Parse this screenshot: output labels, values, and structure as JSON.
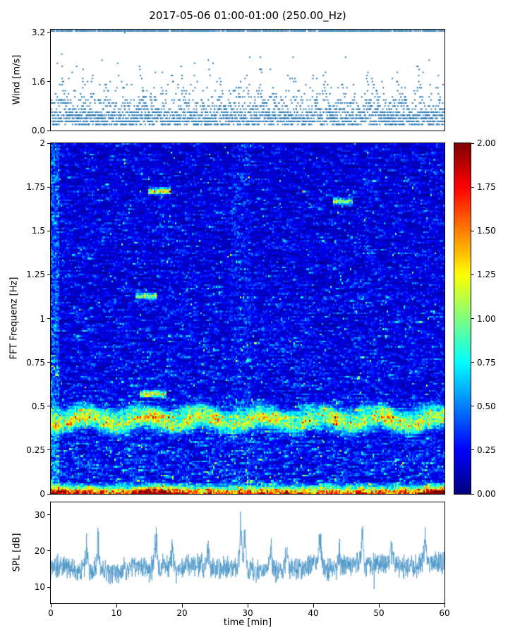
{
  "figure": {
    "title": "2017-05-06 01:00-01:00 (250.00_Hz)",
    "xlabel": "time [min]",
    "background": "#ffffff"
  },
  "chart_data": [
    {
      "id": "wind",
      "type": "scatter",
      "ylabel": "Wind [m/s]",
      "ylim": [
        0.0,
        3.3
      ],
      "yticks": [
        "3.2",
        "1.6",
        "0.0"
      ],
      "ytick_values": [
        3.2,
        1.6,
        0.0
      ],
      "xlim": [
        0,
        60
      ],
      "marker_color": "#2878b5",
      "n_time_steps": 900,
      "quantization_step": 0.1,
      "top_line_value": 3.26,
      "description": "dense quantized wind-speed scatter, mostly 0.2-1.2 m/s, episodic gust columns up to 3.2 m/s, near-continuous dotted row just below 3.3"
    },
    {
      "id": "spectrogram",
      "type": "heatmap",
      "ylabel": "FFT Frequenz [Hz]",
      "ylim": [
        0,
        2
      ],
      "yticks": [
        "2",
        "1.75",
        "1.5",
        "1.25",
        "1",
        "0.75",
        "0.5",
        "0.25",
        "0"
      ],
      "ytick_values": [
        2,
        1.75,
        1.5,
        1.25,
        1,
        0.75,
        0.5,
        0.25,
        0
      ],
      "xlim": [
        0,
        60
      ],
      "vmin": 0,
      "vmax": 2,
      "colormap": "jet",
      "colorbar_ticks": [
        "2.00",
        "1.75",
        "1.50",
        "1.25",
        "1.00",
        "0.75",
        "0.50",
        "0.25",
        "0.00"
      ],
      "colorbar_tick_values": [
        2.0,
        1.75,
        1.5,
        1.25,
        1.0,
        0.75,
        0.5,
        0.25,
        0.0
      ],
      "background_level": 0.2,
      "features": [
        {
          "kind": "h-band",
          "y": 0.41,
          "width": 0.035,
          "amp": 1.15,
          "desc": "bright wavy cyan-green band near 0.41 Hz"
        },
        {
          "kind": "h-band",
          "y": 0.47,
          "width": 0.022,
          "amp": 0.5,
          "desc": "fainter secondary band near 0.47 Hz"
        },
        {
          "kind": "bottom-hot",
          "y_max": 0.035,
          "amp": 1.9,
          "hot_spots": [
            0,
            16,
            59
          ],
          "desc": "hot yellow/orange/red band at lowest frequencies"
        },
        {
          "kind": "streak",
          "x": 16.5,
          "y": 1.73,
          "len": 3.5,
          "amp": 1.2,
          "desc": "cyan streak at 1.73 Hz near 15-18 min"
        },
        {
          "kind": "streak",
          "x": 44.5,
          "y": 1.67,
          "len": 3.0,
          "amp": 0.85,
          "desc": "streak at 1.67 Hz near 43-46 min"
        },
        {
          "kind": "streak",
          "x": 14.5,
          "y": 1.13,
          "len": 3.2,
          "amp": 1.0,
          "desc": "streak at 1.13 Hz near 13-16 min"
        },
        {
          "kind": "streak",
          "x": 15.5,
          "y": 0.57,
          "len": 4.0,
          "amp": 1.05,
          "desc": "streak at 0.57 Hz near 13-17 min"
        },
        {
          "kind": "v-column",
          "x": 29.0,
          "w": 1.5,
          "amp": 0.22,
          "desc": "brighter vertical column near 29 min"
        },
        {
          "kind": "left-edge",
          "x_max": 1.2,
          "amp": 0.45,
          "desc": "brighter speckle at left edge"
        }
      ]
    },
    {
      "id": "spl",
      "type": "line",
      "ylabel": "SPL [dB]",
      "ylim": [
        5.5,
        33.5
      ],
      "yticks": [
        "30",
        "20",
        "10"
      ],
      "ytick_values": [
        30,
        20,
        10
      ],
      "xlim": [
        0,
        60
      ],
      "xticks": [
        "0",
        "10",
        "20",
        "30",
        "40",
        "50",
        "60"
      ],
      "xtick_values": [
        0,
        10,
        20,
        30,
        40,
        50,
        60
      ],
      "line_color": "#3f8ec4",
      "baseline_db": 16,
      "noise_amplitude": 3.2,
      "spikes": [
        {
          "x": 5.5,
          "peak": 27
        },
        {
          "x": 7.2,
          "peak": 25
        },
        {
          "x": 16.0,
          "peak": 28
        },
        {
          "x": 18.5,
          "peak": 25
        },
        {
          "x": 24.0,
          "peak": 24
        },
        {
          "x": 29.0,
          "peak": 30
        },
        {
          "x": 29.6,
          "peak": 28
        },
        {
          "x": 33.5,
          "peak": 26
        },
        {
          "x": 36.0,
          "peak": 24
        },
        {
          "x": 41.0,
          "peak": 26
        },
        {
          "x": 44.0,
          "peak": 24
        },
        {
          "x": 47.5,
          "peak": 26
        },
        {
          "x": 52.0,
          "peak": 23
        },
        {
          "x": 57.0,
          "peak": 24
        }
      ],
      "description": "dense noisy sound-pressure-level trace between about 11 and 22 dB with sharp peaks to 30 dB"
    }
  ]
}
